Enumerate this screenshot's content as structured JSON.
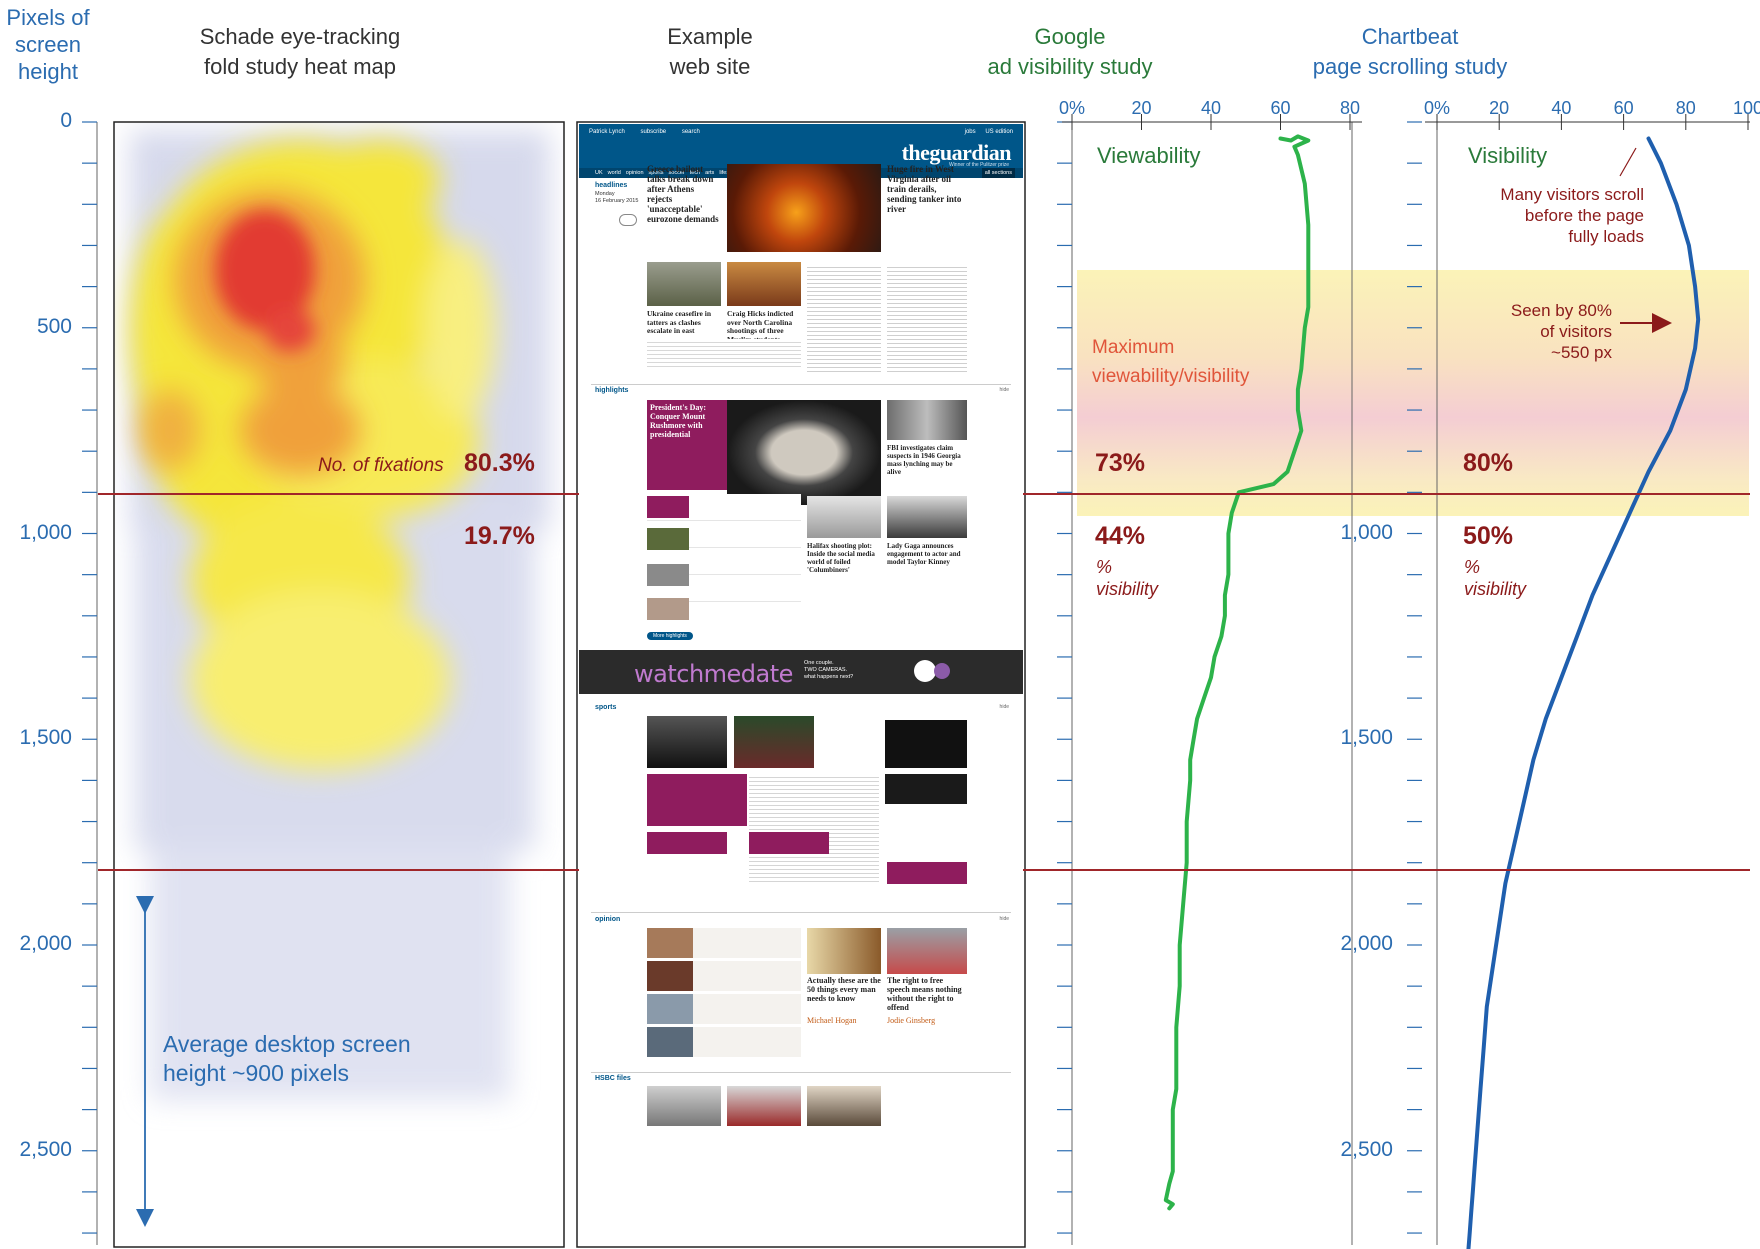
{
  "headers": {
    "y_axis": [
      "Pixels of",
      "screen",
      "height"
    ],
    "heatmap": [
      "Schade eye-tracking",
      "fold study heat map"
    ],
    "website": [
      "Example",
      "web site"
    ],
    "google": [
      "Google",
      "ad visibility study"
    ],
    "chartbeat": [
      "Chartbeat",
      "page scrolling study"
    ]
  },
  "heatmap_labels": {
    "fixations": "No. of fixations",
    "above_pct": "80.3%",
    "below_pct": "19.7%",
    "screen_note": [
      "Average desktop screen",
      "height ~900 pixels"
    ]
  },
  "website": {
    "logo": "theguardian",
    "logo_sub": "Winner of the Pulitzer prize",
    "nav": [
      "UK",
      "world",
      "opinion",
      "sports",
      "soccer",
      "tech",
      "arts",
      "lifestyle",
      "fashion",
      "business",
      "money",
      "travel",
      "environment"
    ],
    "nav_right": "all sections",
    "top_links": [
      "Patrick Lynch",
      "subscribe",
      "search",
      "jobs",
      "US edition"
    ],
    "headlines": "headlines",
    "date": [
      "Monday",
      "16 February 2015"
    ],
    "story1": "Greece bailout talks break down after Athens rejects 'unacceptable' eurozone demands",
    "story2": "Huge fire in West Virginia after oil train derails, sending tanker into river",
    "story3": "Ukraine ceasefire in tatters as clashes escalate in east",
    "story4": "Craig Hicks indicted over North Carolina shootings of three Muslim students",
    "highlights": "highlights",
    "promo1": "President's Day: Conquer Mount Rushmore with presidential",
    "story5": "FBI investigates claim suspects in 1946 Georgia mass lynching may be alive",
    "story6": "Lady Gaga announces engagement to actor and model Taylor Kinney",
    "story7": "Halifax shooting plot: Inside the social media world of foiled 'Columbiners'",
    "more_highlights": "More highlights",
    "ad_text": "watchmedate",
    "ad_sub": [
      "One couple.",
      "TWO CAMERAS.",
      "what happens next?"
    ],
    "sports": "sports",
    "opinion": "opinion",
    "story8": "Actually these are the 50 things every man needs to know",
    "story8_author": "Michael Hogan",
    "story9": "The right to free speech means nothing without the right to offend",
    "story9_author": "Jodie Ginsberg",
    "hsbc": "HSBC files",
    "hide": "hide"
  },
  "google_labels": {
    "title": "Viewability",
    "band": [
      "Maximum",
      "viewability/visibility"
    ],
    "above_pct": "73%",
    "below_pct": "44%",
    "below_sub": [
      "%",
      "visibility"
    ]
  },
  "chartbeat_labels": {
    "title": "Visibility",
    "note1": [
      "Many visitors scroll",
      "before the page",
      "fully loads"
    ],
    "note2": [
      "Seen by 80%",
      "of visitors",
      "~550 px"
    ],
    "above_pct": "80%",
    "below_pct": "50%",
    "below_sub": [
      "%",
      "visibility"
    ]
  },
  "colors": {
    "axis_blue": "#2b6cb0",
    "google_line": "#2db34a",
    "chartbeat_line": "#1f5fae",
    "fold_line": "#a0262a",
    "band_yellow": "#fbf3b8",
    "band_pink": "#f4cdd3",
    "guardian_blue": "#005689",
    "guardian_magenta": "#8f1c5e"
  },
  "chart_data": [
    {
      "type": "line",
      "xlabel": "",
      "ylabel": "",
      "x_ticks": [
        "0%",
        "20",
        "40",
        "60",
        "80"
      ],
      "xlim": [
        0,
        80
      ],
      "y_ticks": [
        "0",
        "500",
        "1,000",
        "1,500",
        "2,000",
        "2,500"
      ],
      "ylim": [
        0,
        2700
      ],
      "y_inverted": true,
      "series": [
        {
          "name": "Viewability",
          "x": [
            60,
            63,
            65,
            68,
            64,
            65,
            67,
            68,
            68,
            68,
            67,
            66,
            65,
            65,
            66,
            64,
            62,
            58,
            48,
            46,
            45,
            45,
            45,
            44,
            44,
            43,
            41,
            40,
            38,
            36,
            35,
            34,
            34,
            33,
            33,
            32,
            31,
            31,
            30,
            30,
            30,
            29,
            29,
            29,
            28,
            27,
            29,
            28
          ],
          "y": [
            40,
            45,
            35,
            45,
            60,
            80,
            150,
            250,
            350,
            450,
            500,
            600,
            650,
            700,
            750,
            800,
            850,
            880,
            900,
            950,
            1000,
            1050,
            1100,
            1150,
            1200,
            1250,
            1300,
            1350,
            1400,
            1450,
            1500,
            1550,
            1600,
            1700,
            1800,
            1900,
            2000,
            2100,
            2200,
            2300,
            2350,
            2400,
            2500,
            2550,
            2580,
            2620,
            2630,
            2640
          ]
        }
      ]
    },
    {
      "type": "line",
      "xlabel": "",
      "ylabel": "",
      "x_ticks": [
        "0%",
        "20",
        "40",
        "60",
        "80",
        "100"
      ],
      "xlim": [
        0,
        100
      ],
      "y_ticks": [
        "1,000",
        "1,500",
        "2,000",
        "2,500"
      ],
      "ylim": [
        0,
        2700
      ],
      "y_inverted": true,
      "series": [
        {
          "name": "Visibility",
          "x": [
            68,
            72,
            77,
            81,
            83,
            84,
            83,
            80,
            75,
            68,
            62,
            56,
            50,
            45,
            40,
            35,
            31,
            28,
            25,
            22,
            20,
            18,
            16,
            15,
            14,
            13,
            12,
            11.5,
            11,
            10.5,
            10
          ],
          "y": [
            40,
            100,
            200,
            300,
            400,
            480,
            550,
            650,
            750,
            850,
            950,
            1050,
            1150,
            1250,
            1350,
            1450,
            1550,
            1650,
            1750,
            1850,
            1950,
            2050,
            2150,
            2250,
            2350,
            2450,
            2550,
            2600,
            2650,
            2700,
            2750
          ]
        }
      ]
    }
  ]
}
